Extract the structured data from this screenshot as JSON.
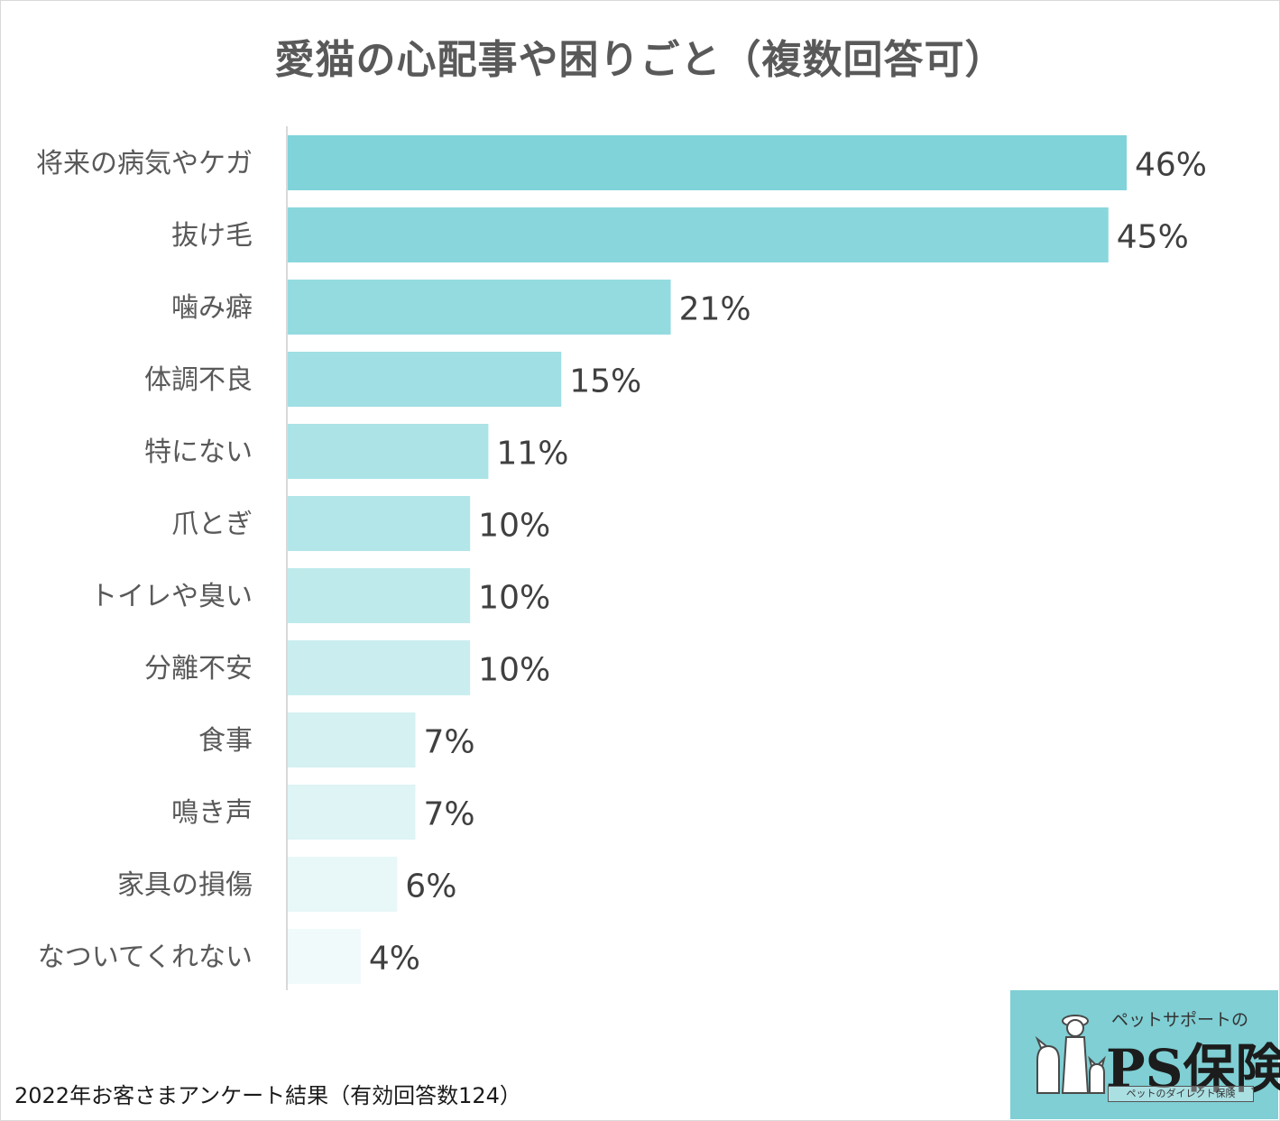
{
  "chart_data": {
    "type": "bar",
    "orientation": "horizontal",
    "title": "愛猫の心配事や困りごと（複数回答可）",
    "categories": [
      "将来の病気やケガ",
      "抜け毛",
      "噛み癖",
      "体調不良",
      "特にない",
      "爪とぎ",
      "トイレや臭い",
      "分離不安",
      "食事",
      "鳴き声",
      "家具の損傷",
      "なついてくれない"
    ],
    "values": [
      46,
      45,
      21,
      15,
      11,
      10,
      10,
      10,
      7,
      7,
      6,
      4
    ],
    "data_labels": [
      "46%",
      "45%",
      "21%",
      "15%",
      "11%",
      "10%",
      "10%",
      "10%",
      "7%",
      "7%",
      "6%",
      "4%"
    ],
    "unit": "%",
    "bar_colors": [
      "#7fd3d9",
      "#89d7dc",
      "#94dbe0",
      "#a0dfe3",
      "#abe3e6",
      "#b3e6e9",
      "#bfeaec",
      "#caeeef",
      "#d5f1f2",
      "#def4f5",
      "#e8f7f8",
      "#f1fafb"
    ],
    "xlim": [
      0,
      46
    ],
    "grid": false,
    "legend": "none"
  },
  "footer": {
    "source": "2022年お客さまアンケート結果（有効回答数124）"
  },
  "logo": {
    "tagline": "ペットサポートの",
    "name": "PS保険",
    "subline": "ペットのダイレクト保険",
    "background": "#7fcfd4"
  },
  "colors": {
    "axis": "#d9d9d9",
    "label_text": "#595959",
    "value_text": "#404040"
  }
}
